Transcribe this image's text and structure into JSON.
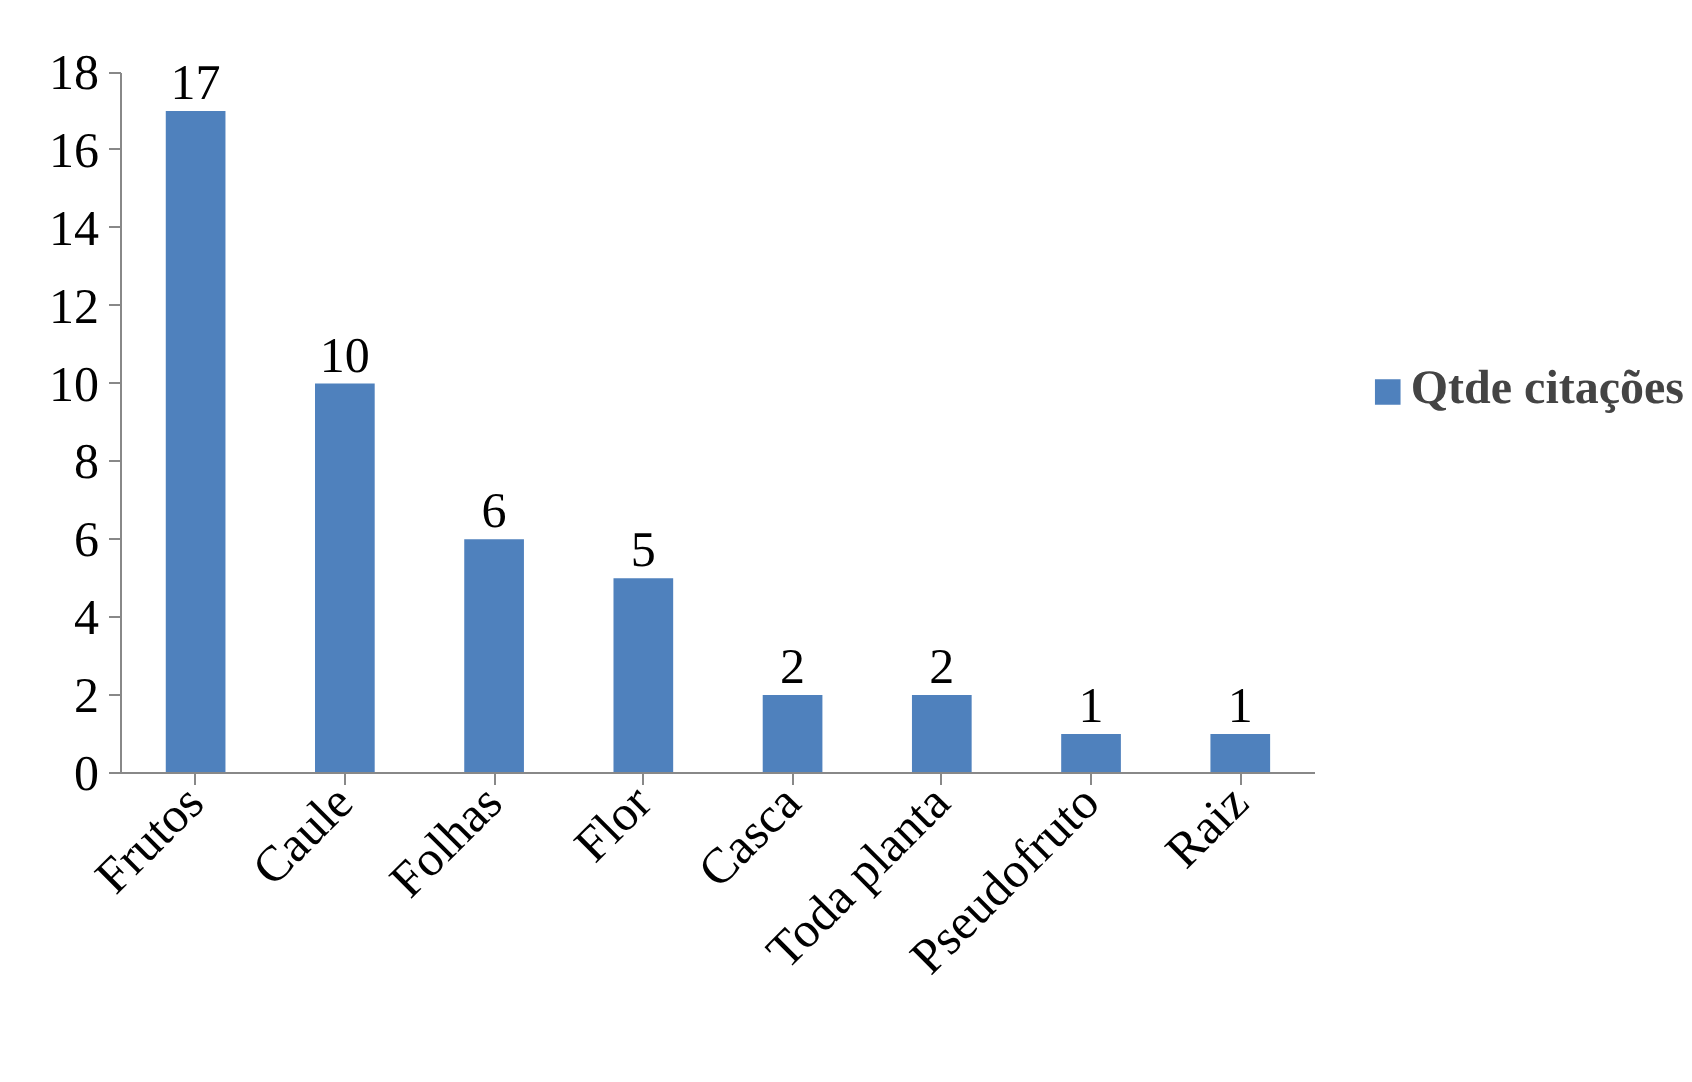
{
  "chart_data": {
    "type": "bar",
    "categories": [
      "Frutos",
      "Caule",
      "Folhas",
      "Flor",
      "Casca",
      "Toda planta",
      "Pseudofruto",
      "Raiz"
    ],
    "series": [
      {
        "name": "Qtde citações",
        "color": "#4f81bd",
        "values": [
          17,
          10,
          6,
          5,
          2,
          2,
          1,
          1
        ]
      }
    ],
    "ylim": [
      0,
      18
    ],
    "yticks": [
      0,
      2,
      4,
      6,
      8,
      10,
      12,
      14,
      16,
      18
    ],
    "grid": false,
    "legend": "right",
    "data_labels": true
  }
}
